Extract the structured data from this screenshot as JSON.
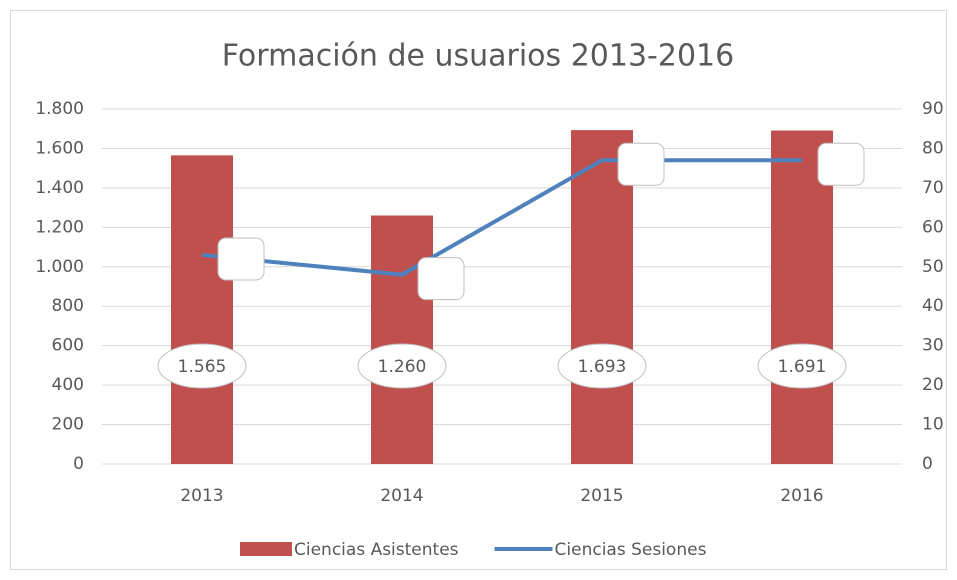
{
  "chart_data": {
    "type": "bar",
    "title": "Formación de usuarios 2013-2016",
    "categories": [
      "2013",
      "2014",
      "2015",
      "2016"
    ],
    "series": [
      {
        "name": "Ciencias Asistentes",
        "type": "bar",
        "color": "#c0504d",
        "values": [
          1565,
          1260,
          1693,
          1691
        ],
        "value_labels": [
          "1.565",
          "1.260",
          "1.693",
          "1.691"
        ]
      },
      {
        "name": "Ciencias Sesiones",
        "type": "line",
        "axis": "y2",
        "color": "#4f81bd",
        "values": [
          53,
          48,
          77,
          77
        ]
      }
    ],
    "ylim": [
      0,
      1800
    ],
    "yticks": [
      0,
      200,
      400,
      600,
      800,
      {
        "value": 1000,
        "label": "1.000"
      },
      {
        "value": 1200,
        "label": "1.200"
      },
      {
        "value": 1400,
        "label": "1.400"
      },
      {
        "value": 1600,
        "label": "1.600"
      },
      {
        "value": 1800,
        "label": "1.800"
      }
    ],
    "y2lim": [
      0,
      90
    ],
    "y2ticks": [
      0,
      10,
      20,
      30,
      40,
      50,
      60,
      70,
      80,
      90
    ],
    "grid": true,
    "legend": "bottom"
  }
}
